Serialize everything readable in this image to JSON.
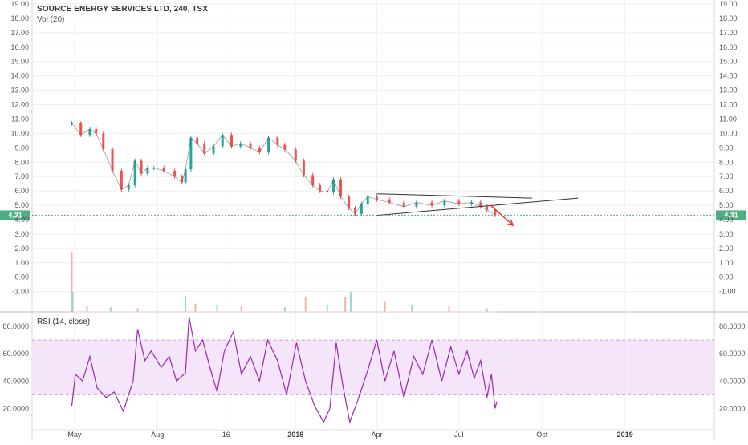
{
  "header": {
    "symbol_line": "SOURCE ENERGY SERVICES LTD, 240, TSX",
    "volume_label": "Vol (20)"
  },
  "price_axis": {
    "tick_labels": [
      "19.00",
      "18.00",
      "17.00",
      "16.00",
      "15.00",
      "14.00",
      "13.00",
      "12.00",
      "11.00",
      "10.00",
      "9.00",
      "8.00",
      "7.00",
      "6.00",
      "5.00",
      "4.00",
      "3.00",
      "2.00",
      "1.00",
      "0.00",
      "-1.00"
    ],
    "last_price_badge": "4.31",
    "badge_color": "#4caf82"
  },
  "rsi_panel": {
    "label": "RSI (14, close)",
    "tick_labels": [
      "80.0000",
      "60.0000",
      "40.0000",
      "20.0000"
    ],
    "line_color": "#9c27b0",
    "band_color": "#f0dcfa"
  },
  "time_axis": {
    "labels": [
      "May",
      "Aug",
      "16",
      "2018",
      "Apr",
      "Jul",
      "Oct",
      "2019"
    ]
  },
  "annotations": {
    "triangle_line_color": "#333333",
    "breakdown_arrow_color": "#e53935"
  },
  "chart_data": {
    "type": "candlestick",
    "title": "SOURCE ENERGY SERVICES LTD, 240, TSX",
    "price_range": [
      -1.8,
      19
    ],
    "price_series": [
      {
        "x": "2017-04-28",
        "y": 10.7
      },
      {
        "x": "2017-05-08",
        "y": 9.9
      },
      {
        "x": "2017-05-18",
        "y": 10.3
      },
      {
        "x": "2017-05-25",
        "y": 10.0
      },
      {
        "x": "2017-06-02",
        "y": 8.9
      },
      {
        "x": "2017-06-12",
        "y": 7.4
      },
      {
        "x": "2017-06-22",
        "y": 6.1
      },
      {
        "x": "2017-06-30",
        "y": 6.4
      },
      {
        "x": "2017-07-07",
        "y": 8.1
      },
      {
        "x": "2017-07-14",
        "y": 7.2
      },
      {
        "x": "2017-07-21",
        "y": 7.6
      },
      {
        "x": "2017-07-28",
        "y": 7.6
      },
      {
        "x": "2017-08-08",
        "y": 7.4
      },
      {
        "x": "2017-08-20",
        "y": 7.0
      },
      {
        "x": "2017-08-28",
        "y": 6.6
      },
      {
        "x": "2017-09-01",
        "y": 7.5
      },
      {
        "x": "2017-09-07",
        "y": 9.7
      },
      {
        "x": "2017-09-14",
        "y": 9.3
      },
      {
        "x": "2017-09-22",
        "y": 8.6
      },
      {
        "x": "2017-10-02",
        "y": 9.1
      },
      {
        "x": "2017-10-12",
        "y": 9.9
      },
      {
        "x": "2017-10-22",
        "y": 9.1
      },
      {
        "x": "2017-11-01",
        "y": 9.3
      },
      {
        "x": "2017-11-12",
        "y": 9.0
      },
      {
        "x": "2017-11-22",
        "y": 8.7
      },
      {
        "x": "2017-12-02",
        "y": 9.7
      },
      {
        "x": "2017-12-12",
        "y": 9.2
      },
      {
        "x": "2017-12-20",
        "y": 8.9
      },
      {
        "x": "2018-01-01",
        "y": 8.1
      },
      {
        "x": "2018-01-10",
        "y": 7.1
      },
      {
        "x": "2018-01-20",
        "y": 6.4
      },
      {
        "x": "2018-01-28",
        "y": 6.0
      },
      {
        "x": "2018-02-05",
        "y": 5.9
      },
      {
        "x": "2018-02-12",
        "y": 6.8
      },
      {
        "x": "2018-02-20",
        "y": 5.6
      },
      {
        "x": "2018-03-01",
        "y": 4.8
      },
      {
        "x": "2018-03-08",
        "y": 4.4
      },
      {
        "x": "2018-03-15",
        "y": 5.1
      },
      {
        "x": "2018-03-22",
        "y": 5.6
      },
      {
        "x": "2018-04-01",
        "y": 5.4
      },
      {
        "x": "2018-04-15",
        "y": 5.2
      },
      {
        "x": "2018-05-01",
        "y": 4.9
      },
      {
        "x": "2018-05-15",
        "y": 5.2
      },
      {
        "x": "2018-06-01",
        "y": 5.0
      },
      {
        "x": "2018-06-15",
        "y": 5.3
      },
      {
        "x": "2018-07-01",
        "y": 5.1
      },
      {
        "x": "2018-07-15",
        "y": 5.2
      },
      {
        "x": "2018-07-25",
        "y": 4.9
      },
      {
        "x": "2018-08-01",
        "y": 4.7
      },
      {
        "x": "2018-08-10",
        "y": 4.31
      }
    ],
    "volume_range": [
      0,
      4.4
    ],
    "volume_series": [
      {
        "x": "2017-04-28",
        "y": 3.3
      },
      {
        "x": "2017-04-29",
        "y": 1.1
      },
      {
        "x": "2017-05-15",
        "y": 0.3
      },
      {
        "x": "2017-06-10",
        "y": 0.25
      },
      {
        "x": "2017-07-10",
        "y": 0.2
      },
      {
        "x": "2017-09-01",
        "y": 0.9
      },
      {
        "x": "2017-09-12",
        "y": 0.45
      },
      {
        "x": "2017-10-06",
        "y": 0.35
      },
      {
        "x": "2017-11-02",
        "y": 0.3
      },
      {
        "x": "2017-12-20",
        "y": 0.25
      },
      {
        "x": "2018-01-12",
        "y": 0.85
      },
      {
        "x": "2018-02-05",
        "y": 0.35
      },
      {
        "x": "2018-02-25",
        "y": 0.8
      },
      {
        "x": "2018-03-03",
        "y": 1.1
      },
      {
        "x": "2018-04-10",
        "y": 0.55
      },
      {
        "x": "2018-05-10",
        "y": 0.4
      },
      {
        "x": "2018-06-20",
        "y": 0.3
      },
      {
        "x": "2018-08-01",
        "y": 0.2
      }
    ],
    "rsi_range": [
      5,
      90
    ],
    "rsi_series": [
      {
        "x": "2017-04-28",
        "y": 22
      },
      {
        "x": "2017-05-02",
        "y": 45
      },
      {
        "x": "2017-05-10",
        "y": 40
      },
      {
        "x": "2017-05-18",
        "y": 58
      },
      {
        "x": "2017-05-26",
        "y": 35
      },
      {
        "x": "2017-06-05",
        "y": 28
      },
      {
        "x": "2017-06-14",
        "y": 32
      },
      {
        "x": "2017-06-24",
        "y": 18
      },
      {
        "x": "2017-07-05",
        "y": 40
      },
      {
        "x": "2017-07-10",
        "y": 78
      },
      {
        "x": "2017-07-18",
        "y": 55
      },
      {
        "x": "2017-07-25",
        "y": 62
      },
      {
        "x": "2017-08-05",
        "y": 50
      },
      {
        "x": "2017-08-14",
        "y": 58
      },
      {
        "x": "2017-08-22",
        "y": 40
      },
      {
        "x": "2017-09-01",
        "y": 46
      },
      {
        "x": "2017-09-05",
        "y": 87
      },
      {
        "x": "2017-09-12",
        "y": 62
      },
      {
        "x": "2017-09-20",
        "y": 70
      },
      {
        "x": "2017-09-28",
        "y": 50
      },
      {
        "x": "2017-10-06",
        "y": 32
      },
      {
        "x": "2017-10-14",
        "y": 62
      },
      {
        "x": "2017-10-24",
        "y": 76
      },
      {
        "x": "2017-11-02",
        "y": 45
      },
      {
        "x": "2017-11-12",
        "y": 58
      },
      {
        "x": "2017-11-22",
        "y": 40
      },
      {
        "x": "2017-12-01",
        "y": 70
      },
      {
        "x": "2017-12-12",
        "y": 55
      },
      {
        "x": "2017-12-22",
        "y": 30
      },
      {
        "x": "2018-01-02",
        "y": 68
      },
      {
        "x": "2018-01-12",
        "y": 40
      },
      {
        "x": "2018-01-22",
        "y": 22
      },
      {
        "x": "2018-02-01",
        "y": 10
      },
      {
        "x": "2018-02-08",
        "y": 20
      },
      {
        "x": "2018-02-15",
        "y": 68
      },
      {
        "x": "2018-02-22",
        "y": 38
      },
      {
        "x": "2018-03-02",
        "y": 10
      },
      {
        "x": "2018-03-12",
        "y": 28
      },
      {
        "x": "2018-03-22",
        "y": 48
      },
      {
        "x": "2018-04-01",
        "y": 70
      },
      {
        "x": "2018-04-10",
        "y": 40
      },
      {
        "x": "2018-04-20",
        "y": 62
      },
      {
        "x": "2018-05-01",
        "y": 28
      },
      {
        "x": "2018-05-12",
        "y": 58
      },
      {
        "x": "2018-05-22",
        "y": 45
      },
      {
        "x": "2018-06-01",
        "y": 70
      },
      {
        "x": "2018-06-12",
        "y": 40
      },
      {
        "x": "2018-06-22",
        "y": 65
      },
      {
        "x": "2018-07-01",
        "y": 45
      },
      {
        "x": "2018-07-10",
        "y": 62
      },
      {
        "x": "2018-07-18",
        "y": 42
      },
      {
        "x": "2018-07-25",
        "y": 55
      },
      {
        "x": "2018-08-01",
        "y": 28
      },
      {
        "x": "2018-08-06",
        "y": 45
      },
      {
        "x": "2018-08-10",
        "y": 20
      },
      {
        "x": "2018-08-12",
        "y": 25
      }
    ],
    "rsi_band": [
      30,
      70
    ],
    "triangle": {
      "upper": [
        {
          "x": "2018-04-01",
          "y": 5.8
        },
        {
          "x": "2018-09-20",
          "y": 5.5
        }
      ],
      "lower": [
        {
          "x": "2018-04-01",
          "y": 4.3
        },
        {
          "x": "2018-11-10",
          "y": 5.5
        }
      ],
      "breakdown_arrow": [
        {
          "x": "2018-08-05",
          "y": 5.0
        },
        {
          "x": "2018-08-30",
          "y": 3.6
        }
      ]
    },
    "last_price": 4.31,
    "grid": true,
    "xlabel": "",
    "ylabel": ""
  }
}
